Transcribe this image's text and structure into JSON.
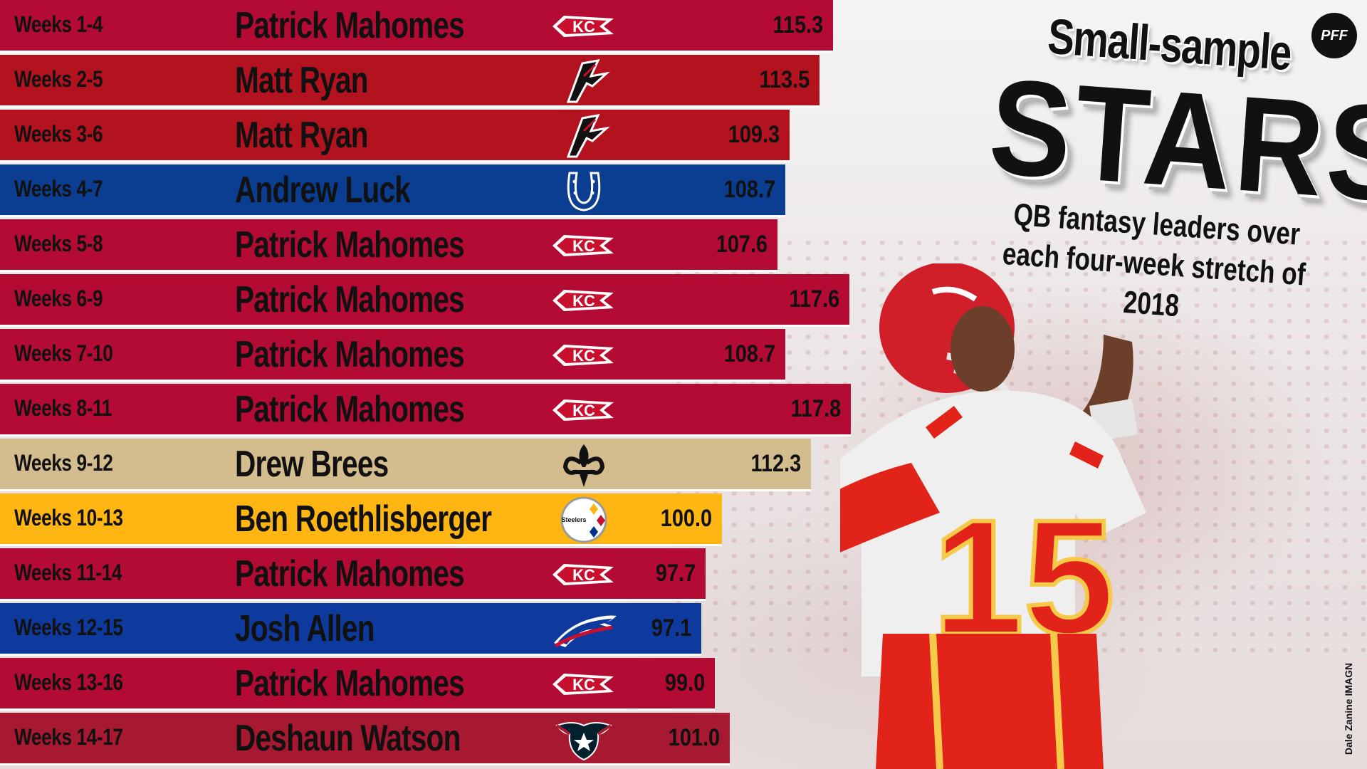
{
  "title": {
    "kicker": "Small-sample",
    "headline": "STARS",
    "subtitle": "QB fantasy leaders over each four-week stretch of 2018"
  },
  "brand": "PFF",
  "credit": "Dale Zanine IMAGN",
  "colors": {
    "chiefs": "#b40b35",
    "falcons": "#b3121f",
    "colts": "#0b3d91",
    "saints": "#d3bc8d",
    "steelers": "#ffb612",
    "bills": "#0d3a9c",
    "texans": "#a71930"
  },
  "chart_data": {
    "type": "bar",
    "orientation": "horizontal",
    "categories": [
      "Weeks 1-4",
      "Weeks 2-5",
      "Weeks 3-6",
      "Weeks 4-7",
      "Weeks 5-8",
      "Weeks 6-9",
      "Weeks 7-10",
      "Weeks 8-11",
      "Weeks 9-12",
      "Weeks 10-13",
      "Weeks 11-14",
      "Weeks 12-15",
      "Weeks 13-16",
      "Weeks 14-17"
    ],
    "players": [
      "Patrick Mahomes",
      "Matt Ryan",
      "Matt Ryan",
      "Andrew Luck",
      "Patrick Mahomes",
      "Patrick Mahomes",
      "Patrick Mahomes",
      "Patrick Mahomes",
      "Drew Brees",
      "Ben Roethlisberger",
      "Patrick Mahomes",
      "Josh Allen",
      "Patrick Mahomes",
      "Deshaun Watson"
    ],
    "teams": [
      "chiefs",
      "falcons",
      "falcons",
      "colts",
      "chiefs",
      "chiefs",
      "chiefs",
      "chiefs",
      "saints",
      "steelers",
      "chiefs",
      "bills",
      "chiefs",
      "texans"
    ],
    "values": [
      115.3,
      113.5,
      109.3,
      108.7,
      107.6,
      117.6,
      108.7,
      117.8,
      112.3,
      100.0,
      97.7,
      97.1,
      99.0,
      101.0
    ],
    "value_labels": [
      "115.3",
      "113.5",
      "109.3",
      "108.7",
      "107.6",
      "117.6",
      "108.7",
      "117.8",
      "112.3",
      "100.0",
      "97.7",
      "97.1",
      "99.0",
      "101.0"
    ],
    "logo_icons": [
      "chiefs-arrowhead-icon",
      "falcons-icon",
      "falcons-icon",
      "colts-horseshoe-icon",
      "chiefs-arrowhead-icon",
      "chiefs-arrowhead-icon",
      "chiefs-arrowhead-icon",
      "chiefs-arrowhead-icon",
      "saints-fleur-de-lis-icon",
      "steelers-logo-icon",
      "chiefs-arrowhead-icon",
      "bills-buffalo-icon",
      "chiefs-arrowhead-icon",
      "texans-bull-icon"
    ],
    "steelers_logo_text": "Steelers",
    "axis_min": 0,
    "axis_max": 117.8
  }
}
